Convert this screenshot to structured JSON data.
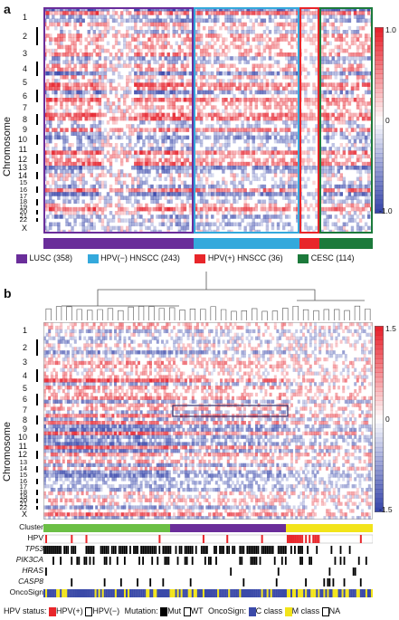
{
  "panels": {
    "a": {
      "label": "a",
      "y_title": "Chromosome",
      "chromosomes": [
        "1",
        "2",
        "3",
        "4",
        "5",
        "6",
        "7",
        "8",
        "9",
        "10",
        "11",
        "12",
        "13",
        "14",
        "15",
        "16",
        "17",
        "18",
        "19",
        "20",
        "21",
        "22",
        "X"
      ],
      "colorbar": {
        "max": "1.0",
        "mid": "0",
        "min": "-1.0"
      },
      "groups": [
        {
          "name": "LUSC (358)",
          "color": "#6a2d9a"
        },
        {
          "name": "HPV(−) HNSCC (243)",
          "color": "#34a9dc"
        },
        {
          "name": "HPV(+) HNSCC (36)",
          "color": "#e8262a"
        },
        {
          "name": "CESC (114)",
          "color": "#1c7a3b"
        }
      ]
    },
    "b": {
      "label": "b",
      "y_title": "Chromosome",
      "chromosomes": [
        "1",
        "2",
        "3",
        "4",
        "5",
        "6",
        "7",
        "8",
        "9",
        "10",
        "11",
        "12",
        "13",
        "14",
        "15",
        "16",
        "17",
        "18",
        "19",
        "20",
        "21",
        "22",
        "X"
      ],
      "colorbar": {
        "max": "1.5",
        "mid": "0",
        "min": "-1.5"
      },
      "tracks": [
        {
          "label": "Cluster",
          "italic": false
        },
        {
          "label": "HPV",
          "italic": false
        },
        {
          "label": "TP53",
          "italic": true
        },
        {
          "label": "PIK3CA",
          "italic": true
        },
        {
          "label": "HRAS",
          "italic": true
        },
        {
          "label": "CASP8",
          "italic": true
        },
        {
          "label": "OncoSign",
          "italic": false
        }
      ],
      "legend": {
        "hpv_status": "HPV status:",
        "hpv_pos": "HPV(+)",
        "hpv_neg": "HPV(−)",
        "mutation": "Mutation:",
        "mut": "Mut",
        "wt": "WT",
        "oncosign": "OncoSign:",
        "c_class": "C class",
        "m_class": "M class",
        "na": "NA"
      }
    }
  },
  "colors": {
    "red": "#e8262a",
    "blue": "#3b4aa8",
    "green": "#6bbf45",
    "purple": "#6a2d9a",
    "yellow": "#f2e41a",
    "black": "#000000"
  }
}
